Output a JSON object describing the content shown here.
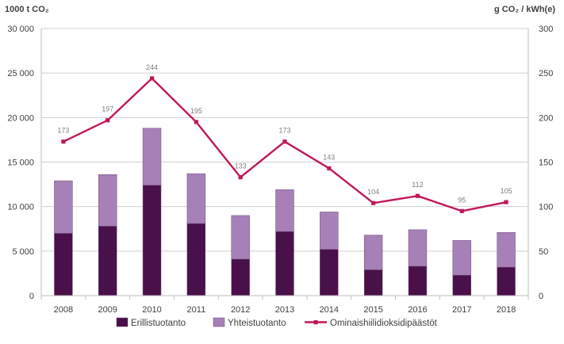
{
  "chart_data": {
    "type": "bar",
    "left_axis_unit": "1000 t CO₂",
    "right_axis_unit": "g CO₂ / kWh(e)",
    "categories": [
      "2008",
      "2009",
      "2010",
      "2011",
      "2012",
      "2013",
      "2014",
      "2015",
      "2016",
      "2017",
      "2018"
    ],
    "series": [
      {
        "name": "Erillistuotanto",
        "type": "bar",
        "stack": "total",
        "axis": "left",
        "color": "#4a1049",
        "values": [
          7000,
          7800,
          12400,
          8100,
          4100,
          7200,
          5200,
          2900,
          3300,
          2300,
          3200
        ]
      },
      {
        "name": "Yhteistuotanto",
        "type": "bar",
        "stack": "total",
        "axis": "left",
        "color": "#a780b8",
        "values": [
          5900,
          5800,
          6400,
          5600,
          4900,
          4700,
          4200,
          3900,
          4100,
          3900,
          3900
        ]
      },
      {
        "name": "Ominaishiilidioksidipäästöt",
        "type": "line",
        "axis": "right",
        "color": "#c0185a",
        "values": [
          173,
          197,
          244,
          195,
          133,
          173,
          143,
          104,
          112,
          95,
          105
        ]
      }
    ],
    "ylim_left": [
      0,
      30000
    ],
    "ylim_right": [
      0,
      300
    ],
    "yticks_left": [
      "0",
      "5 000",
      "10 000",
      "15 000",
      "20 000",
      "25 000",
      "30 000"
    ],
    "yticks_right": [
      "0",
      "50",
      "100",
      "150",
      "200",
      "250",
      "300"
    ],
    "grid": true,
    "legend_position": "bottom"
  }
}
